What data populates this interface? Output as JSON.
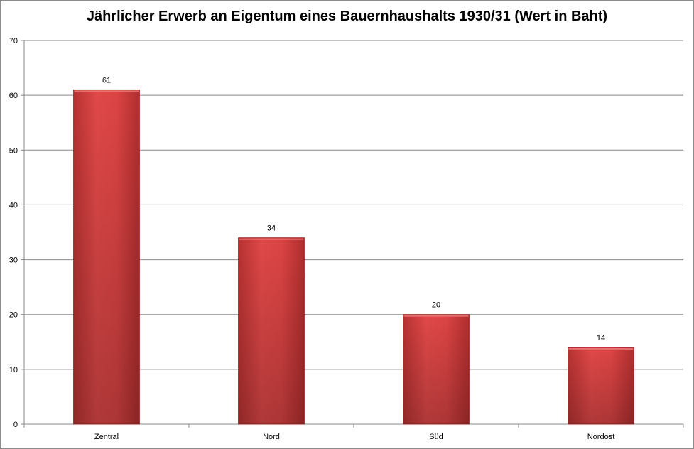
{
  "chart_data": {
    "type": "bar",
    "title": "Jährlicher Erwerb an Eigentum eines Bauernhaushalts 1930/31 (Wert in Baht)",
    "categories": [
      "Zentral",
      "Nord",
      "Süd",
      "Nordost"
    ],
    "values": [
      61,
      34,
      20,
      14
    ],
    "data_labels": [
      "61",
      "34",
      "20",
      "14"
    ],
    "y_ticks": [
      "0",
      "10",
      "20",
      "30",
      "40",
      "50",
      "60",
      "70"
    ],
    "ylim": [
      0,
      70
    ],
    "xlabel": "",
    "ylabel": "",
    "grid": true,
    "legend": "none",
    "bar_color": "#d64141",
    "bar_edge_color": "#a02a2a"
  }
}
